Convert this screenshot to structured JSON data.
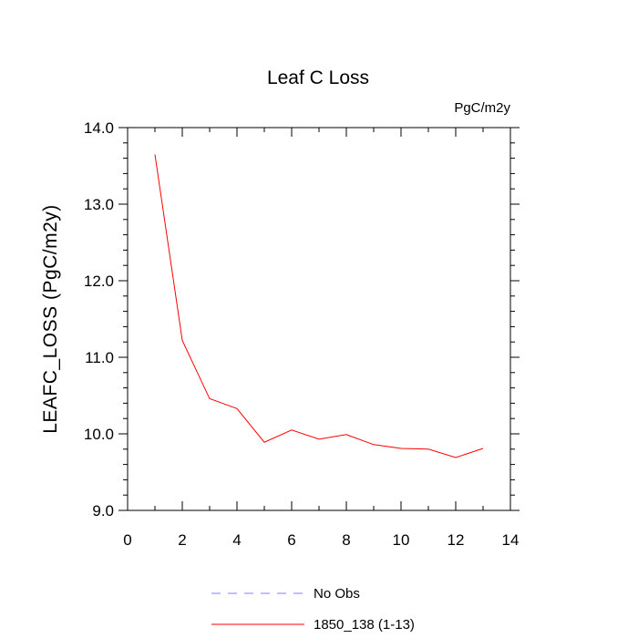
{
  "chart_data": {
    "type": "line",
    "title": "Leaf C Loss",
    "units": "PgC/m2y",
    "xlabel": "",
    "ylabel": "LEAFC_LOSS  (PgC/m2y)",
    "xlim": [
      0,
      14
    ],
    "ylim": [
      9.0,
      14.0
    ],
    "x_ticks": [
      0,
      2,
      4,
      6,
      8,
      10,
      12,
      14
    ],
    "x_tick_labels": [
      "0",
      "2",
      "4",
      "6",
      "8",
      "10",
      "12",
      "14"
    ],
    "y_ticks": [
      9.0,
      10.0,
      11.0,
      12.0,
      13.0,
      14.0
    ],
    "y_tick_labels": [
      "9.0",
      "10.0",
      "11.0",
      "12.0",
      "13.0",
      "14.0"
    ],
    "grid": false,
    "legend_position": "bottom",
    "series": [
      {
        "name": "1850_138 (1-13)",
        "color": "#ff0000",
        "dash": "solid",
        "x": [
          1,
          2,
          3,
          4,
          5,
          6,
          7,
          8,
          9,
          10,
          11,
          12,
          13
        ],
        "values": [
          13.65,
          11.22,
          10.46,
          10.33,
          9.89,
          10.05,
          9.93,
          9.99,
          9.86,
          9.81,
          9.8,
          9.69,
          9.81
        ]
      }
    ],
    "legend": [
      {
        "label": "No Obs",
        "color": "#8080ff",
        "dash": "dashed"
      },
      {
        "label": "1850_138 (1-13)",
        "color": "#ff0000",
        "dash": "solid"
      }
    ]
  }
}
